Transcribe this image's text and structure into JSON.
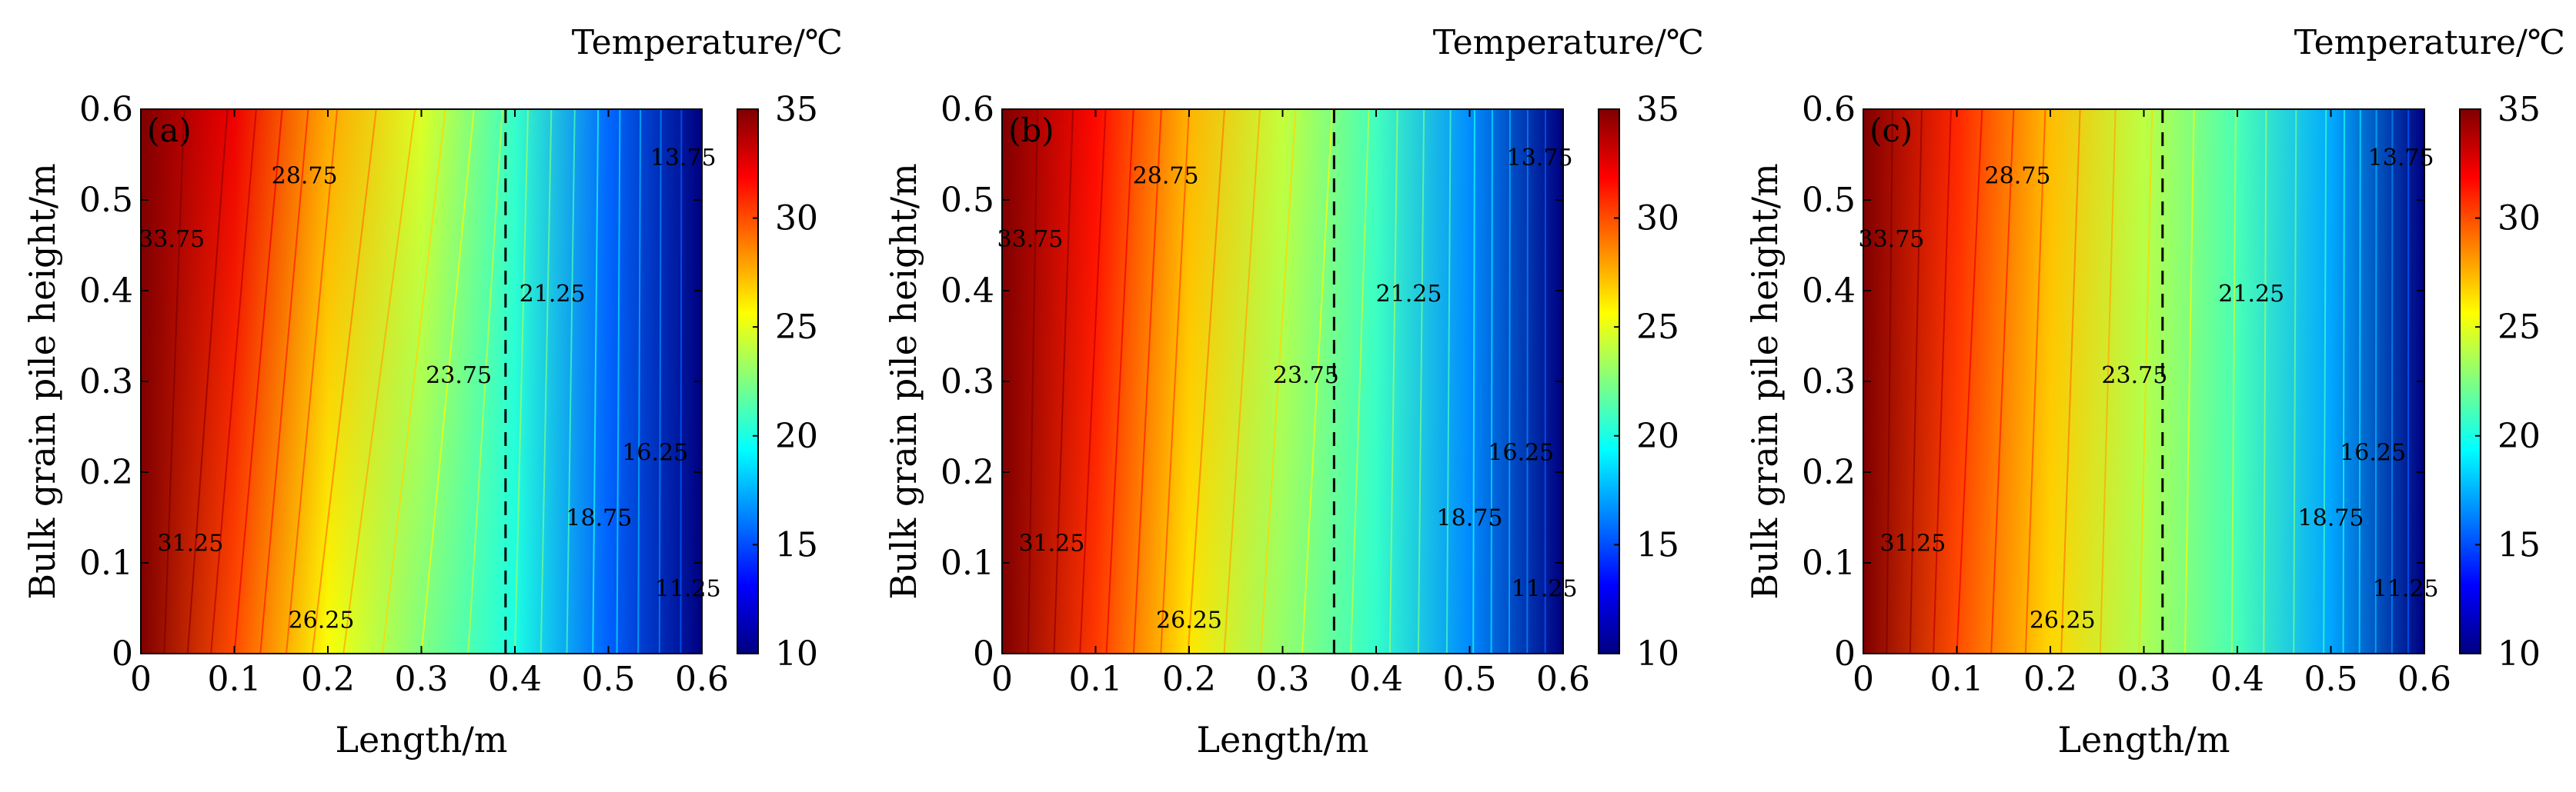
{
  "chart_data": {
    "type": "heatmap",
    "colormap": "jet",
    "panels": [
      {
        "tag": "(a)",
        "xlabel": "Length/m",
        "ylabel": "Bulk grain pile height/m",
        "colorbar_title": "Temperature/℃",
        "xlim": [
          0,
          0.6
        ],
        "ylim": [
          0,
          0.6
        ],
        "clim": [
          10,
          35
        ],
        "x_ticks": [
          "0",
          "0.1",
          "0.2",
          "0.3",
          "0.4",
          "0.5",
          "0.6"
        ],
        "y_ticks": [
          "0",
          "0.1",
          "0.2",
          "0.3",
          "0.4",
          "0.5",
          "0.6"
        ],
        "colorbar_ticks": [
          "10",
          "15",
          "20",
          "25",
          "30",
          "35"
        ],
        "temperature_field": {
          "x": [
            0,
            0.1,
            0.2,
            0.3,
            0.4,
            0.5,
            0.6
          ],
          "T_bottom": [
            35,
            30.0,
            25.5,
            22.5,
            20.0,
            15.5,
            10
          ],
          "T_top": [
            35,
            32.3,
            27.8,
            24.8,
            20.7,
            15.7,
            10
          ]
        },
        "dashed_line_x": 0.39,
        "contour_labels": [
          {
            "text": "33.75",
            "x": 0.033,
            "y": 0.455
          },
          {
            "text": "31.25",
            "x": 0.053,
            "y": 0.12
          },
          {
            "text": "28.75",
            "x": 0.175,
            "y": 0.525
          },
          {
            "text": "26.25",
            "x": 0.193,
            "y": 0.035
          },
          {
            "text": "23.75",
            "x": 0.34,
            "y": 0.305
          },
          {
            "text": "21.25",
            "x": 0.44,
            "y": 0.395
          },
          {
            "text": "18.75",
            "x": 0.49,
            "y": 0.148
          },
          {
            "text": "16.25",
            "x": 0.55,
            "y": 0.22
          },
          {
            "text": "13.75",
            "x": 0.58,
            "y": 0.545
          },
          {
            "text": "11.25",
            "x": 0.585,
            "y": 0.07
          }
        ]
      },
      {
        "tag": "(b)",
        "xlabel": "Length/m",
        "ylabel": "Bulk grain pile height/m",
        "colorbar_title": "Temperature/℃",
        "xlim": [
          0,
          0.6
        ],
        "ylim": [
          0,
          0.6
        ],
        "clim": [
          10,
          35
        ],
        "x_ticks": [
          "0",
          "0.1",
          "0.2",
          "0.3",
          "0.4",
          "0.5",
          "0.6"
        ],
        "y_ticks": [
          "0",
          "0.1",
          "0.2",
          "0.3",
          "0.4",
          "0.5",
          "0.6"
        ],
        "colorbar_ticks": [
          "10",
          "15",
          "20",
          "25",
          "30",
          "35"
        ],
        "temperature_field": {
          "x": [
            0,
            0.1,
            0.2,
            0.3,
            0.4,
            0.5,
            0.6
          ],
          "T_bottom": [
            35,
            30.5,
            26.2,
            23.0,
            20.6,
            16.5,
            10
          ],
          "T_top": [
            35,
            31.7,
            27.5,
            24.2,
            21.0,
            16.6,
            10
          ]
        },
        "dashed_line_x": 0.355,
        "contour_labels": [
          {
            "text": "33.75",
            "x": 0.03,
            "y": 0.455
          },
          {
            "text": "31.25",
            "x": 0.053,
            "y": 0.12
          },
          {
            "text": "28.75",
            "x": 0.175,
            "y": 0.525
          },
          {
            "text": "26.25",
            "x": 0.2,
            "y": 0.035
          },
          {
            "text": "23.75",
            "x": 0.325,
            "y": 0.305
          },
          {
            "text": "21.25",
            "x": 0.435,
            "y": 0.395
          },
          {
            "text": "18.75",
            "x": 0.5,
            "y": 0.148
          },
          {
            "text": "16.25",
            "x": 0.555,
            "y": 0.22
          },
          {
            "text": "13.75",
            "x": 0.575,
            "y": 0.545
          },
          {
            "text": "11.25",
            "x": 0.58,
            "y": 0.07
          }
        ]
      },
      {
        "tag": "(c)",
        "xlabel": "Length/m",
        "ylabel": "Bulk grain pile height/m",
        "colorbar_title": "Temperature/℃",
        "xlim": [
          0,
          0.6
        ],
        "ylim": [
          0,
          0.6
        ],
        "clim": [
          10,
          35
        ],
        "x_ticks": [
          "0",
          "0.1",
          "0.2",
          "0.3",
          "0.4",
          "0.5",
          "0.6"
        ],
        "y_ticks": [
          "0",
          "0.1",
          "0.2",
          "0.3",
          "0.4",
          "0.5",
          "0.6"
        ],
        "colorbar_ticks": [
          "10",
          "15",
          "20",
          "25",
          "30",
          "35"
        ],
        "temperature_field": {
          "x": [
            0,
            0.1,
            0.2,
            0.3,
            0.4,
            0.5,
            0.6
          ],
          "T_bottom": [
            35,
            30.0,
            26.6,
            23.6,
            21.1,
            17.2,
            10
          ],
          "T_top": [
            35,
            31.0,
            27.3,
            24.0,
            21.2,
            17.3,
            10
          ]
        },
        "dashed_line_x": 0.32,
        "contour_labels": [
          {
            "text": "33.75",
            "x": 0.03,
            "y": 0.455
          },
          {
            "text": "31.25",
            "x": 0.053,
            "y": 0.12
          },
          {
            "text": "28.75",
            "x": 0.165,
            "y": 0.525
          },
          {
            "text": "26.25",
            "x": 0.213,
            "y": 0.035
          },
          {
            "text": "23.75",
            "x": 0.29,
            "y": 0.305
          },
          {
            "text": "21.25",
            "x": 0.415,
            "y": 0.395
          },
          {
            "text": "18.75",
            "x": 0.5,
            "y": 0.148
          },
          {
            "text": "16.25",
            "x": 0.545,
            "y": 0.22
          },
          {
            "text": "13.75",
            "x": 0.575,
            "y": 0.545
          },
          {
            "text": "11.25",
            "x": 0.58,
            "y": 0.07
          }
        ]
      }
    ]
  }
}
